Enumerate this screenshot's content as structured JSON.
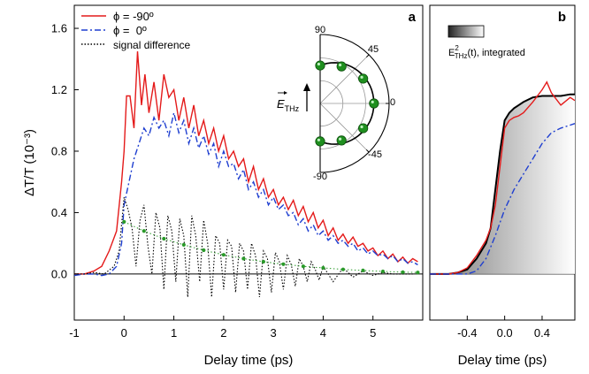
{
  "chart_data": [
    {
      "panel_label": "a",
      "type": "line",
      "xlabel": "Delay time (ps)",
      "ylabel": "ΔT/T (10⁻³)",
      "xlim": [
        -1.0,
        6.0
      ],
      "ylim": [
        -0.3,
        1.75
      ],
      "xticks": [
        "-1",
        "0",
        "1",
        "2",
        "3",
        "4",
        "5"
      ],
      "xtick_values": [
        -1,
        0,
        1,
        2,
        3,
        4,
        5
      ],
      "yticks": [
        "0.0",
        "0.4",
        "0.8",
        "1.2",
        "1.6"
      ],
      "ytick_values": [
        0.0,
        0.4,
        0.8,
        1.2,
        1.6
      ],
      "grid": false,
      "legend_position": "top-left",
      "legend": [
        {
          "label": "ϕ = -90º",
          "series": "red"
        },
        {
          "label": "ϕ =  0º",
          "series": "blue"
        },
        {
          "label": "signal difference",
          "series": "black"
        }
      ],
      "series": [
        {
          "key": "red",
          "color": "#e41a1a",
          "dash": "solid",
          "x": [
            -1.0,
            -0.8,
            -0.6,
            -0.45,
            -0.3,
            -0.15,
            -0.05,
            0.0,
            0.05,
            0.12,
            0.2,
            0.27,
            0.35,
            0.42,
            0.5,
            0.6,
            0.7,
            0.8,
            0.9,
            1.0,
            1.1,
            1.2,
            1.3,
            1.4,
            1.5,
            1.6,
            1.7,
            1.8,
            1.9,
            2.0,
            2.1,
            2.2,
            2.3,
            2.4,
            2.5,
            2.6,
            2.7,
            2.8,
            2.9,
            3.0,
            3.1,
            3.2,
            3.3,
            3.4,
            3.5,
            3.6,
            3.7,
            3.8,
            3.9,
            4.0,
            4.1,
            4.2,
            4.3,
            4.4,
            4.5,
            4.6,
            4.7,
            4.8,
            4.9,
            5.0,
            5.1,
            5.2,
            5.3,
            5.4,
            5.5,
            5.6,
            5.7,
            5.8,
            5.9
          ],
          "y": [
            0.0,
            0.0,
            0.02,
            0.05,
            0.15,
            0.28,
            0.6,
            0.8,
            1.16,
            1.16,
            0.95,
            1.45,
            1.1,
            1.3,
            1.05,
            1.25,
            1.0,
            1.3,
            1.15,
            1.2,
            1.0,
            1.15,
            0.95,
            1.1,
            0.9,
            1.0,
            0.85,
            0.95,
            0.8,
            0.9,
            0.75,
            0.8,
            0.7,
            0.75,
            0.6,
            0.7,
            0.55,
            0.62,
            0.5,
            0.55,
            0.45,
            0.5,
            0.42,
            0.48,
            0.38,
            0.44,
            0.34,
            0.4,
            0.3,
            0.35,
            0.25,
            0.3,
            0.22,
            0.26,
            0.2,
            0.24,
            0.18,
            0.2,
            0.15,
            0.17,
            0.12,
            0.15,
            0.1,
            0.13,
            0.08,
            0.11,
            0.07,
            0.1,
            0.08
          ]
        },
        {
          "key": "blue",
          "color": "#1f3fd0",
          "dash": "dashdot",
          "x": [
            -1.0,
            -0.8,
            -0.6,
            -0.45,
            -0.3,
            -0.15,
            -0.05,
            0.0,
            0.1,
            0.2,
            0.3,
            0.4,
            0.5,
            0.6,
            0.7,
            0.8,
            0.9,
            1.0,
            1.1,
            1.2,
            1.3,
            1.4,
            1.5,
            1.6,
            1.7,
            1.8,
            1.9,
            2.0,
            2.1,
            2.2,
            2.3,
            2.4,
            2.5,
            2.6,
            2.7,
            2.8,
            2.9,
            3.0,
            3.1,
            3.2,
            3.3,
            3.4,
            3.5,
            3.6,
            3.7,
            3.8,
            3.9,
            4.0,
            4.1,
            4.2,
            4.3,
            4.4,
            4.5,
            4.6,
            4.7,
            4.8,
            4.9,
            5.0,
            5.1,
            5.2,
            5.3,
            5.4,
            5.5,
            5.6,
            5.7,
            5.8,
            5.9
          ],
          "y": [
            -0.01,
            0.0,
            0.0,
            -0.01,
            0.0,
            0.05,
            0.2,
            0.45,
            0.6,
            0.75,
            0.85,
            0.95,
            0.9,
            1.02,
            0.95,
            1.0,
            0.9,
            1.05,
            0.92,
            1.0,
            0.85,
            0.95,
            0.82,
            0.9,
            0.78,
            0.85,
            0.7,
            0.8,
            0.7,
            0.72,
            0.62,
            0.68,
            0.55,
            0.6,
            0.5,
            0.55,
            0.45,
            0.5,
            0.42,
            0.45,
            0.38,
            0.4,
            0.32,
            0.36,
            0.28,
            0.32,
            0.25,
            0.28,
            0.22,
            0.25,
            0.2,
            0.22,
            0.18,
            0.2,
            0.15,
            0.17,
            0.13,
            0.15,
            0.12,
            0.13,
            0.1,
            0.12,
            0.08,
            0.1,
            0.07,
            0.08,
            0.06
          ]
        },
        {
          "key": "black",
          "color": "#000000",
          "dash": "dotted",
          "x": [
            -1.0,
            -0.8,
            -0.6,
            -0.4,
            -0.2,
            -0.1,
            0.0,
            0.08,
            0.16,
            0.24,
            0.32,
            0.4,
            0.48,
            0.56,
            0.64,
            0.72,
            0.8,
            0.88,
            0.96,
            1.04,
            1.12,
            1.2,
            1.28,
            1.36,
            1.44,
            1.52,
            1.6,
            1.68,
            1.76,
            1.84,
            1.92,
            2.0,
            2.08,
            2.16,
            2.24,
            2.32,
            2.4,
            2.48,
            2.56,
            2.64,
            2.72,
            2.8,
            2.88,
            2.96,
            3.04,
            3.12,
            3.2,
            3.28,
            3.36,
            3.44,
            3.52,
            3.6,
            3.68,
            3.76,
            3.84,
            3.92,
            4.0,
            4.2,
            4.4,
            4.6,
            4.8,
            5.0,
            5.2,
            5.4,
            5.6,
            5.8
          ],
          "y": [
            0.0,
            0.0,
            0.01,
            0.0,
            0.05,
            0.15,
            0.5,
            0.42,
            0.3,
            0.05,
            0.35,
            0.45,
            0.18,
            0.0,
            0.4,
            0.3,
            -0.1,
            0.38,
            0.28,
            -0.05,
            0.36,
            0.25,
            -0.15,
            0.38,
            0.25,
            -0.05,
            0.35,
            0.2,
            -0.15,
            0.25,
            0.2,
            -0.1,
            0.22,
            0.18,
            -0.12,
            0.2,
            0.15,
            -0.1,
            0.2,
            0.12,
            -0.15,
            0.15,
            0.1,
            -0.12,
            0.14,
            0.08,
            -0.1,
            0.12,
            0.06,
            -0.08,
            0.1,
            0.05,
            -0.05,
            0.08,
            0.03,
            -0.04,
            0.05,
            -0.05,
            0.04,
            -0.02,
            0.02,
            -0.01,
            0.01,
            0.0,
            0.0,
            0.0
          ]
        },
        {
          "key": "green-fit",
          "color": "#2a9a2a",
          "dash": "dotted-beads",
          "x": [
            0.0,
            0.4,
            0.8,
            1.2,
            1.6,
            2.0,
            2.4,
            2.8,
            3.2,
            3.6,
            4.0,
            4.4,
            4.8,
            5.2,
            5.6,
            5.9
          ],
          "y": [
            0.34,
            0.28,
            0.23,
            0.19,
            0.155,
            0.125,
            0.1,
            0.08,
            0.064,
            0.05,
            0.04,
            0.03,
            0.023,
            0.017,
            0.012,
            0.01
          ]
        }
      ],
      "inset_polar": {
        "type": "polar",
        "tick_labels": [
          "90",
          "45",
          "0",
          "-45",
          "-90"
        ],
        "field_label": "E",
        "field_subscript": "THz",
        "point_color": "#1f8f1f",
        "points": [
          {
            "angle_deg": 90,
            "r": 0.55
          },
          {
            "angle_deg": 60,
            "r": 0.62
          },
          {
            "angle_deg": 30,
            "r": 0.72
          },
          {
            "angle_deg": 0,
            "r": 0.78
          },
          {
            "angle_deg": -30,
            "r": 0.72
          },
          {
            "angle_deg": -60,
            "r": 0.62
          },
          {
            "angle_deg": -90,
            "r": 0.55
          }
        ]
      }
    },
    {
      "panel_label": "b",
      "type": "area",
      "xlabel": "Delay time (ps)",
      "xlim": [
        -0.8,
        0.75
      ],
      "ylim": [
        -0.3,
        1.75
      ],
      "xticks": [
        "-0.4",
        "0.0",
        "0.4"
      ],
      "xtick_values": [
        -0.4,
        0.0,
        0.4
      ],
      "legend_position": "top-left",
      "legend": [
        {
          "label_main": "E",
          "label_sup": "2",
          "label_sub": "THz",
          "label_tail": "(t), integrated",
          "series": "integrated"
        }
      ],
      "series": [
        {
          "key": "integrated",
          "color": "#000000",
          "fill": "gradient",
          "x": [
            -0.8,
            -0.6,
            -0.5,
            -0.4,
            -0.3,
            -0.2,
            -0.15,
            -0.1,
            -0.05,
            0.0,
            0.05,
            0.1,
            0.15,
            0.2,
            0.3,
            0.4,
            0.5,
            0.6,
            0.7,
            0.75
          ],
          "y": [
            0.0,
            0.0,
            0.01,
            0.03,
            0.1,
            0.2,
            0.3,
            0.55,
            0.8,
            1.0,
            1.05,
            1.08,
            1.1,
            1.12,
            1.15,
            1.16,
            1.16,
            1.16,
            1.17,
            1.17
          ]
        },
        {
          "key": "red",
          "color": "#e41a1a",
          "x": [
            -0.8,
            -0.6,
            -0.5,
            -0.4,
            -0.3,
            -0.2,
            -0.15,
            -0.1,
            -0.05,
            0.0,
            0.05,
            0.1,
            0.15,
            0.2,
            0.3,
            0.4,
            0.45,
            0.5,
            0.6,
            0.7,
            0.75
          ],
          "y": [
            0.0,
            0.0,
            0.01,
            0.04,
            0.12,
            0.22,
            0.3,
            0.45,
            0.7,
            0.95,
            1.0,
            1.02,
            1.03,
            1.05,
            1.12,
            1.2,
            1.25,
            1.18,
            1.1,
            1.15,
            1.13
          ]
        },
        {
          "key": "blue",
          "color": "#1f3fd0",
          "dash": "dashdot",
          "x": [
            -0.8,
            -0.6,
            -0.5,
            -0.4,
            -0.3,
            -0.2,
            -0.1,
            0.0,
            0.1,
            0.2,
            0.3,
            0.4,
            0.5,
            0.6,
            0.7,
            0.75
          ],
          "y": [
            0.0,
            0.0,
            0.0,
            0.0,
            0.02,
            0.1,
            0.25,
            0.42,
            0.55,
            0.65,
            0.75,
            0.85,
            0.92,
            0.95,
            0.97,
            0.98
          ]
        }
      ]
    }
  ]
}
